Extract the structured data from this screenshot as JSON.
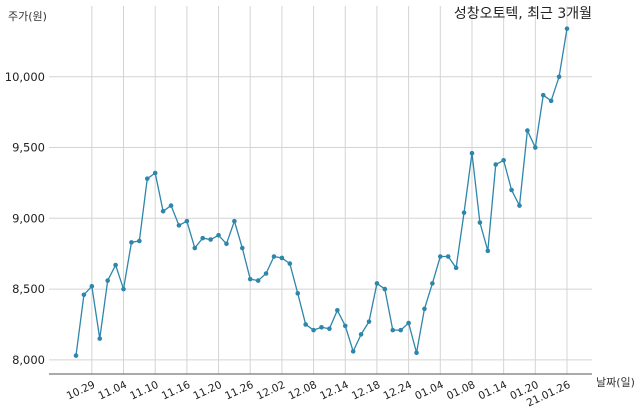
{
  "chart_data": {
    "type": "line",
    "title": "성창오토텍, 최근 3개월",
    "ylabel": "주가(원)",
    "xlabel": "날짜(일)",
    "ylim": [
      7900,
      10500
    ],
    "yticks": [
      8000,
      8500,
      9000,
      9500,
      10000
    ],
    "ytick_labels": [
      "8,000",
      "8,500",
      "9,000",
      "9,500",
      "10,000"
    ],
    "xtick_labels": [
      "10.29",
      "11.04",
      "11.10",
      "11.16",
      "11.20",
      "11.26",
      "12.02",
      "12.08",
      "12.14",
      "12.18",
      "12.24",
      "01.04",
      "01.08",
      "01.14",
      "01.20",
      "21.01.26"
    ],
    "xtick_index": [
      2,
      6,
      10,
      14,
      18,
      22,
      26,
      30,
      34,
      38,
      42,
      46,
      50,
      54,
      58,
      62
    ],
    "grid": true,
    "line_color": "#2e86ab",
    "values": [
      8030,
      8460,
      8520,
      8150,
      8560,
      8670,
      8500,
      8830,
      8840,
      9280,
      9320,
      9050,
      9090,
      8950,
      8980,
      8790,
      8860,
      8850,
      8880,
      8820,
      8980,
      8790,
      8570,
      8560,
      8610,
      8730,
      8720,
      8680,
      8470,
      8250,
      8210,
      8230,
      8220,
      8350,
      8240,
      8060,
      8180,
      8270,
      8540,
      8500,
      8210,
      8210,
      8260,
      8050,
      8360,
      8540,
      8730,
      8730,
      8650,
      9040,
      9460,
      8970,
      8770,
      9380,
      9410,
      9200,
      9090,
      9620,
      9500,
      9870,
      9830,
      10000,
      10340
    ]
  }
}
